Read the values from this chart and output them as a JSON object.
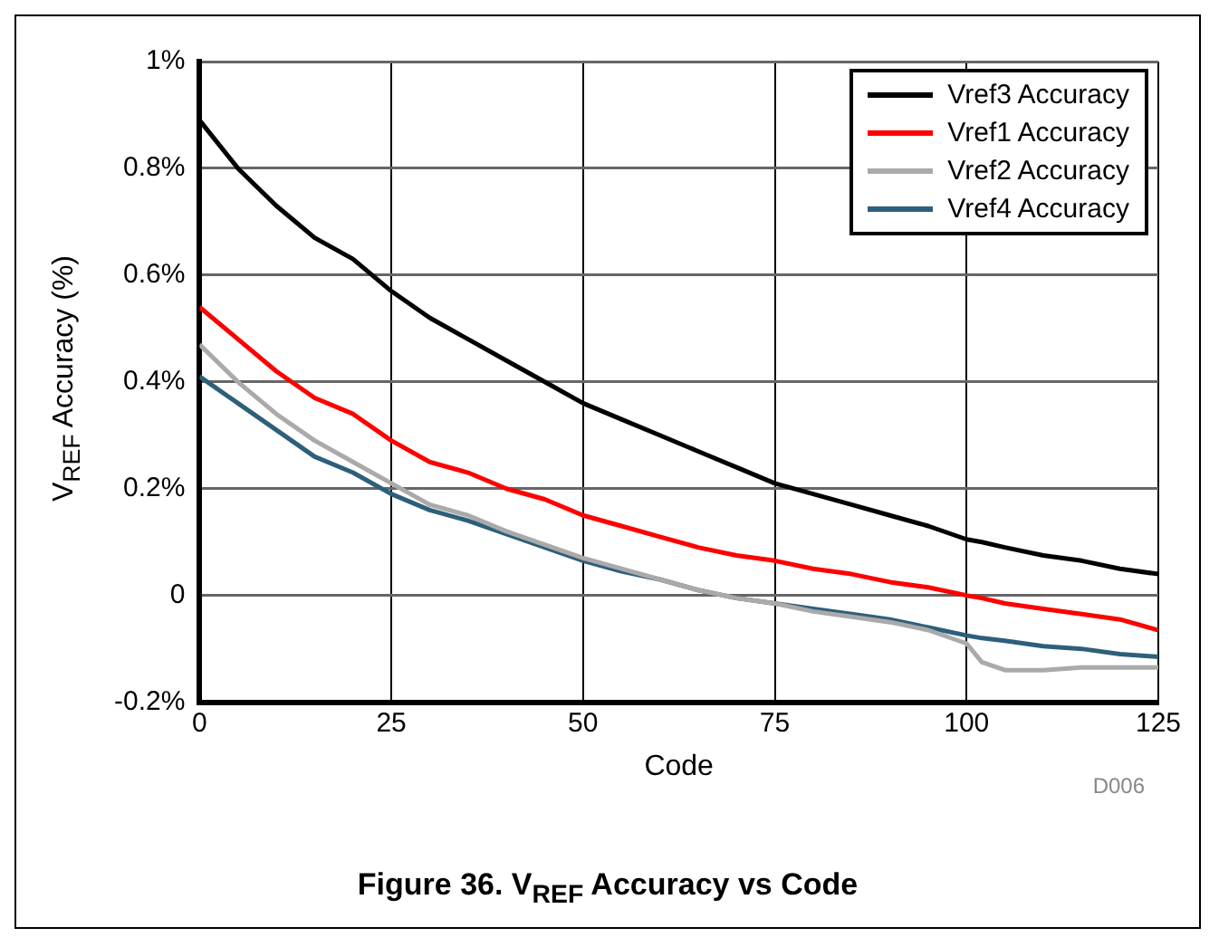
{
  "chart_data": {
    "type": "line",
    "title": "Figure 36. V$_{REF}$ Accuracy vs Code",
    "xlabel": "Code",
    "ylabel": "V$_{REF}$ Accuracy (%)",
    "annotations": [
      "D006"
    ],
    "x": [
      0,
      5,
      10,
      15,
      20,
      25,
      30,
      35,
      40,
      45,
      50,
      55,
      60,
      65,
      70,
      75,
      80,
      85,
      90,
      95,
      100,
      102,
      105,
      110,
      115,
      120,
      125
    ],
    "series": [
      {
        "name": "Vref3 Accuracy",
        "color": "#000000",
        "values": [
          0.89,
          0.8,
          0.73,
          0.67,
          0.63,
          0.57,
          0.52,
          0.48,
          0.44,
          0.4,
          0.36,
          0.33,
          0.3,
          0.27,
          0.24,
          0.21,
          0.19,
          0.17,
          0.15,
          0.13,
          0.105,
          0.1,
          0.09,
          0.075,
          0.065,
          0.05,
          0.04
        ]
      },
      {
        "name": "Vref1 Accuracy",
        "color": "#ff0000",
        "values": [
          0.54,
          0.48,
          0.42,
          0.37,
          0.34,
          0.29,
          0.25,
          0.23,
          0.2,
          0.18,
          0.15,
          0.13,
          0.11,
          0.09,
          0.075,
          0.065,
          0.05,
          0.04,
          0.025,
          0.015,
          0.0,
          -0.005,
          -0.015,
          -0.025,
          -0.035,
          -0.045,
          -0.065
        ]
      },
      {
        "name": "Vref2 Accuracy",
        "color": "#aaaaaa",
        "values": [
          0.47,
          0.4,
          0.34,
          0.29,
          0.25,
          0.21,
          0.17,
          0.15,
          0.12,
          0.095,
          0.07,
          0.05,
          0.03,
          0.01,
          -0.005,
          -0.015,
          -0.03,
          -0.04,
          -0.05,
          -0.065,
          -0.09,
          -0.125,
          -0.14,
          -0.14,
          -0.135,
          -0.135,
          -0.135
        ]
      },
      {
        "name": "Vref4 Accuracy",
        "color": "#2e5f7a",
        "values": [
          0.41,
          0.36,
          0.31,
          0.26,
          0.23,
          0.19,
          0.16,
          0.14,
          0.115,
          0.09,
          0.065,
          0.045,
          0.03,
          0.01,
          -0.005,
          -0.015,
          -0.025,
          -0.035,
          -0.045,
          -0.06,
          -0.075,
          -0.08,
          -0.085,
          -0.095,
          -0.1,
          -0.11,
          -0.115
        ]
      }
    ],
    "xlim": [
      0,
      125
    ],
    "xticks": [
      0,
      25,
      50,
      75,
      100,
      125
    ],
    "ylim": [
      -0.2,
      1
    ],
    "yticks": [
      {
        "value": -0.2,
        "label": "-0.2%"
      },
      0,
      {
        "value": 0.2,
        "label": "0.2%"
      },
      {
        "value": 0.4,
        "label": "0.4%"
      },
      {
        "value": 0.6,
        "label": "0.6%"
      },
      {
        "value": 0.8,
        "label": "0.8%"
      },
      {
        "value": 1,
        "label": "1%"
      }
    ],
    "grid": true,
    "legend": "top right",
    "marker": "none",
    "line_style": "solid"
  }
}
